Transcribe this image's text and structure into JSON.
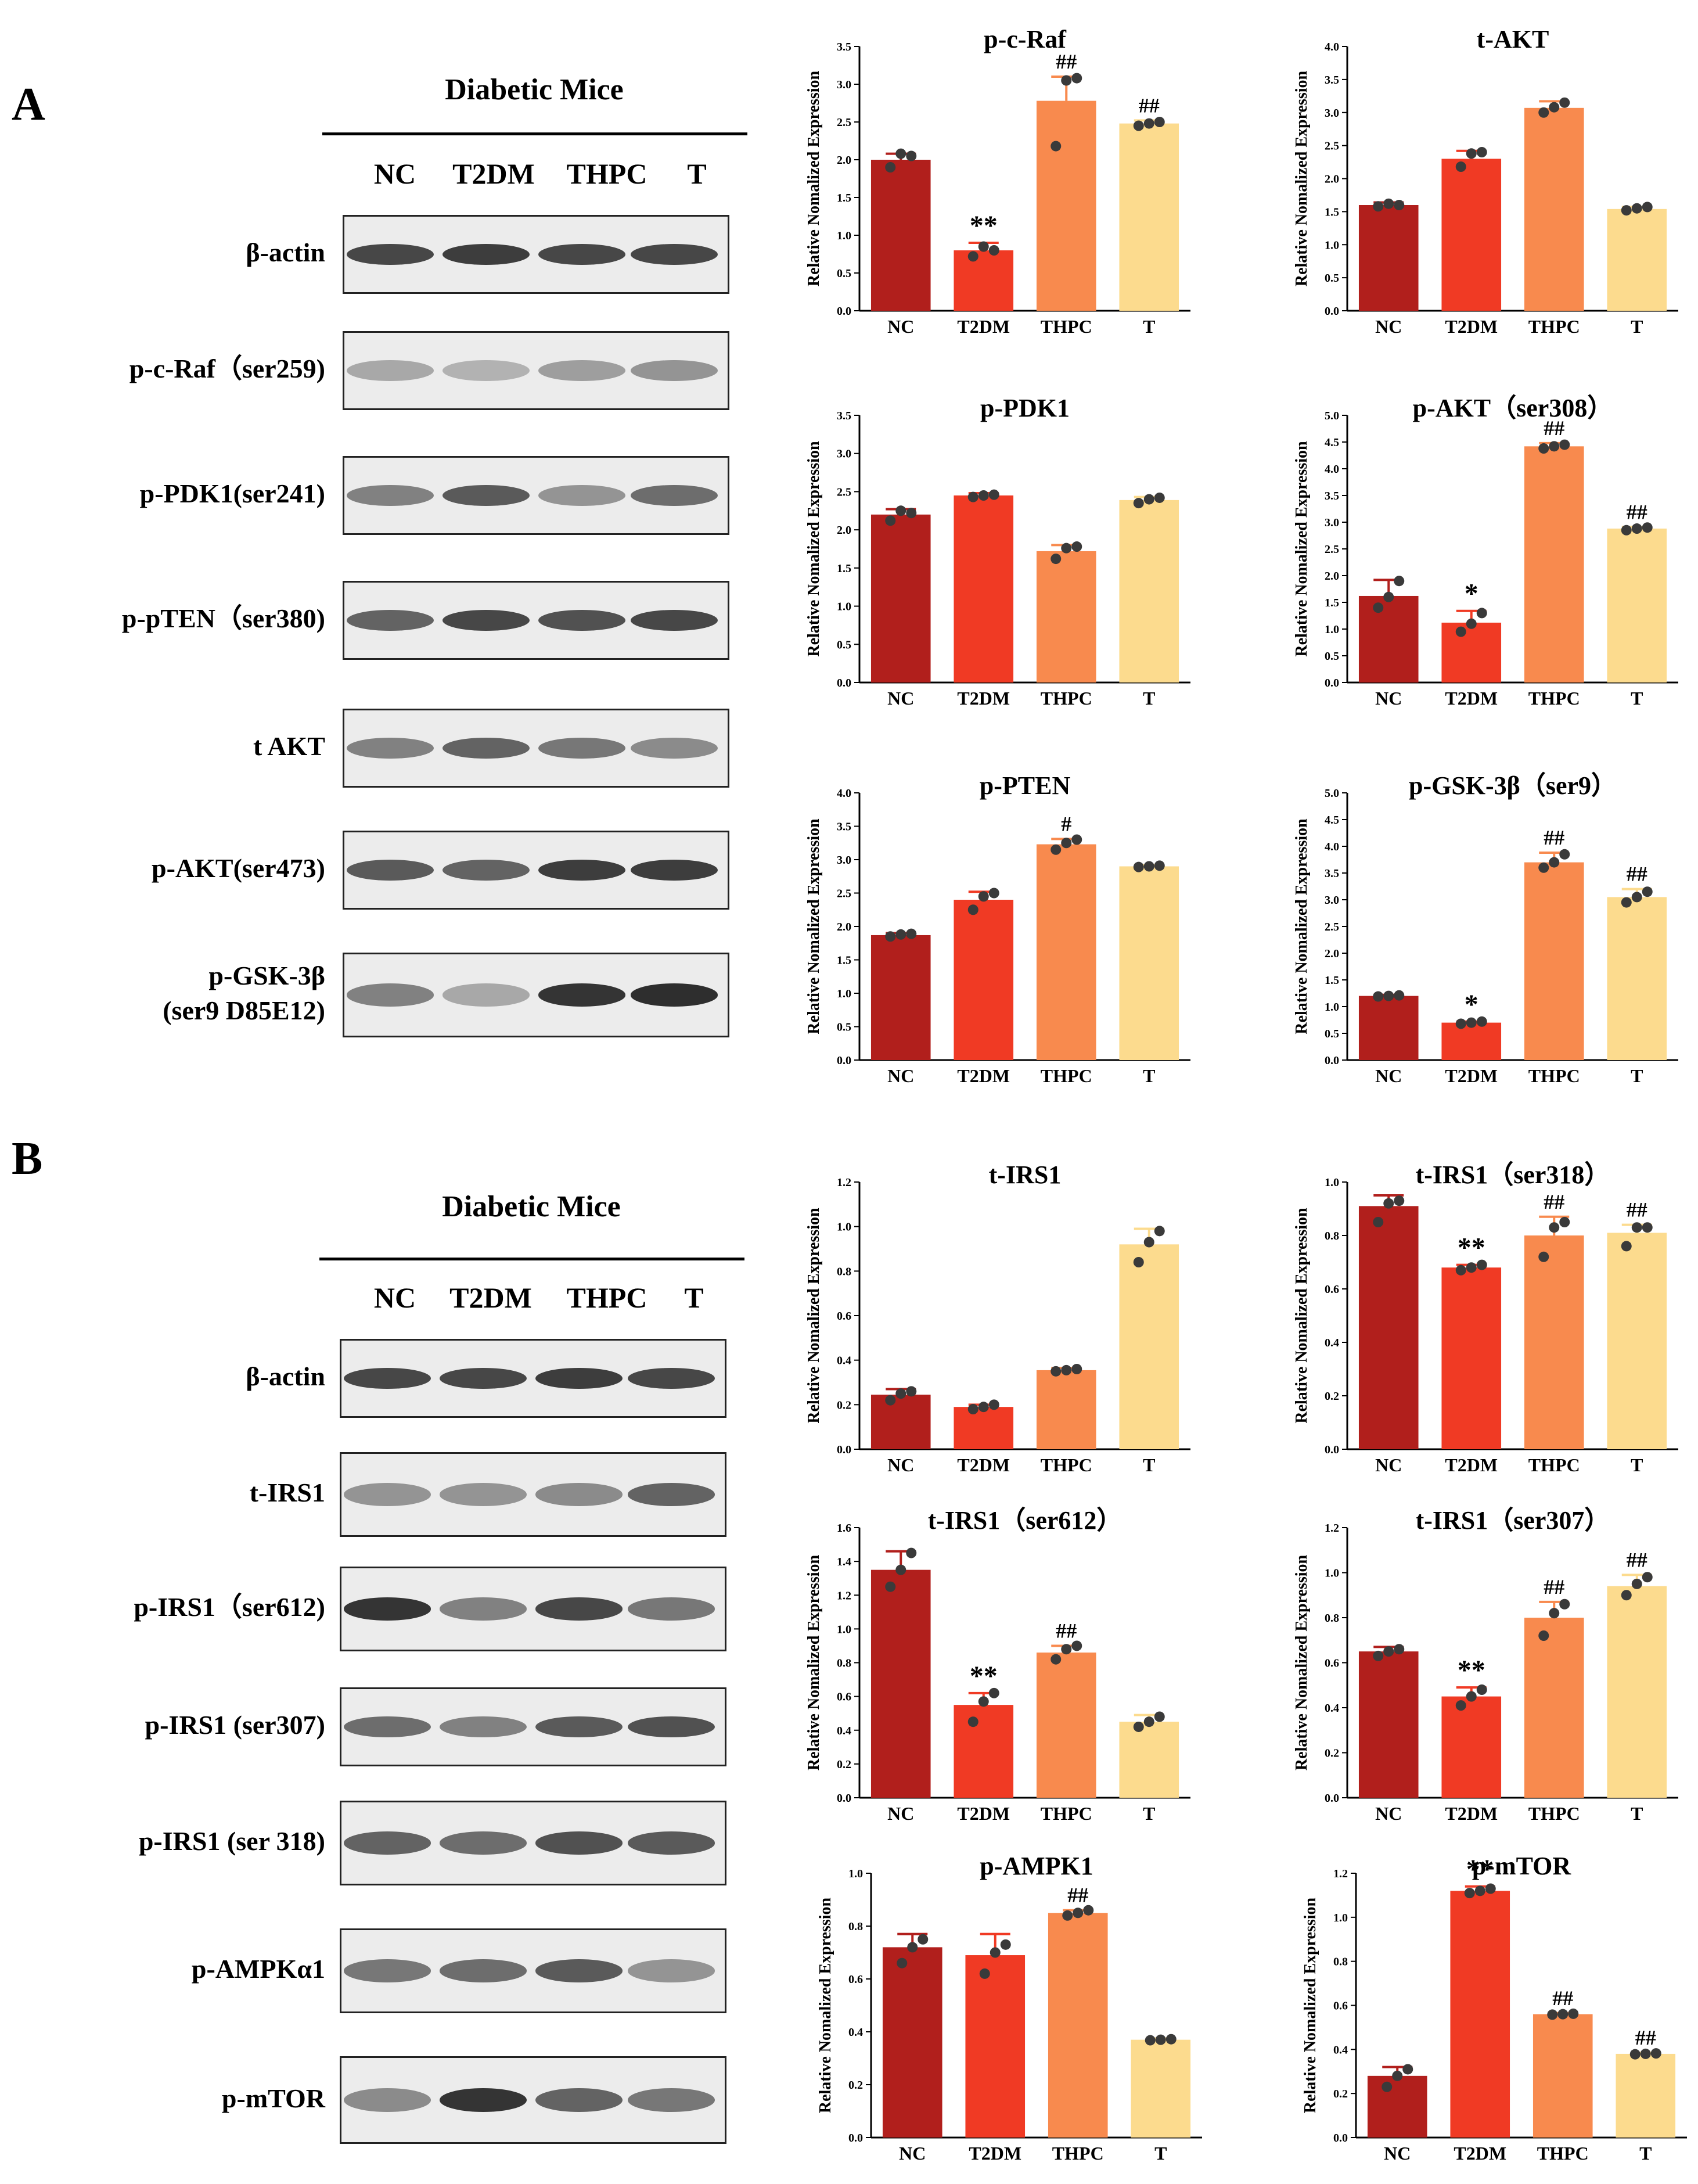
{
  "panels": [
    {
      "letter": "A",
      "blot_title": "Diabetic Mice",
      "lanes": [
        "NC",
        "T2DM",
        "THPC",
        "T"
      ],
      "blots": [
        {
          "label": "β-actin",
          "intensity": [
            0.85,
            0.9,
            0.85,
            0.85
          ]
        },
        {
          "label": "p-c-Raf（ser259)",
          "intensity": [
            0.35,
            0.3,
            0.4,
            0.45
          ]
        },
        {
          "label": "p-PDK1(ser241)",
          "intensity": [
            0.55,
            0.75,
            0.45,
            0.65
          ]
        },
        {
          "label": "p-pTEN（ser380)",
          "intensity": [
            0.7,
            0.85,
            0.8,
            0.85
          ]
        },
        {
          "label": "t AKT",
          "intensity": [
            0.55,
            0.7,
            0.6,
            0.5
          ]
        },
        {
          "label": "p-AKT(ser473)",
          "intensity": [
            0.75,
            0.7,
            0.9,
            0.9
          ]
        },
        {
          "label": "p-GSK-3β\n(ser9 D85E12)",
          "intensity": [
            0.55,
            0.35,
            0.95,
            0.98
          ]
        }
      ]
    },
    {
      "letter": "B",
      "blot_title": "Diabetic Mice",
      "lanes": [
        "NC",
        "T2DM",
        "THPC",
        "T"
      ],
      "blots": [
        {
          "label": "β-actin",
          "intensity": [
            0.85,
            0.85,
            0.9,
            0.85
          ]
        },
        {
          "label": "t-IRS1",
          "intensity": [
            0.45,
            0.45,
            0.5,
            0.7
          ]
        },
        {
          "label": "p-IRS1（ser612)",
          "intensity": [
            0.95,
            0.55,
            0.85,
            0.6
          ]
        },
        {
          "label": "p-IRS1 (ser307)",
          "intensity": [
            0.65,
            0.55,
            0.75,
            0.8
          ]
        },
        {
          "label": "p-IRS1 (ser 318)",
          "intensity": [
            0.7,
            0.65,
            0.8,
            0.75
          ]
        },
        {
          "label": "p-AMPKα1",
          "intensity": [
            0.6,
            0.65,
            0.75,
            0.45
          ]
        },
        {
          "label": "p-mTOR",
          "intensity": [
            0.5,
            0.95,
            0.7,
            0.6
          ]
        }
      ]
    }
  ],
  "colors": {
    "NC": "#b11f1c",
    "T2DM": "#f03a24",
    "THPC": "#f88a4e",
    "T": "#fcdb8e",
    "dots": "#3a3a3a"
  },
  "chart_data": [
    {
      "type": "bar",
      "title": "p-c-Raf",
      "ylabel": "Relative Nomalized Expression",
      "categories": [
        "NC",
        "T2DM",
        "THPC",
        "T"
      ],
      "values": [
        2.0,
        0.8,
        2.78,
        2.48
      ],
      "errors": [
        0.08,
        0.1,
        0.32,
        0.04
      ],
      "points": [
        [
          1.9,
          2.08,
          2.05
        ],
        [
          0.72,
          0.85,
          0.8
        ],
        [
          2.18,
          3.05,
          3.08
        ],
        [
          2.45,
          2.48,
          2.5
        ]
      ],
      "annotations": [
        "",
        "**",
        "##",
        "##"
      ],
      "ylim": [
        0,
        3.5
      ],
      "yticks": [
        "0.0",
        "0.5",
        "1.0",
        "1.5",
        "2.0",
        "2.5",
        "3.0",
        "3.5"
      ]
    },
    {
      "type": "bar",
      "title": "t-AKT",
      "ylabel": "Relative Nomalized Expression",
      "categories": [
        "NC",
        "T2DM",
        "THPC",
        "T"
      ],
      "values": [
        1.6,
        2.3,
        3.07,
        1.54
      ],
      "errors": [
        0.04,
        0.12,
        0.1,
        0.03
      ],
      "points": [
        [
          1.58,
          1.62,
          1.6
        ],
        [
          2.18,
          2.38,
          2.4
        ],
        [
          3.0,
          3.08,
          3.15
        ],
        [
          1.52,
          1.55,
          1.57
        ]
      ],
      "annotations": [
        "",
        "",
        "",
        ""
      ],
      "ylim": [
        0,
        4.0
      ],
      "yticks": [
        "0.0",
        "0.5",
        "1.0",
        "1.5",
        "2.0",
        "2.5",
        "3.0",
        "3.5",
        "4.0"
      ]
    },
    {
      "type": "bar",
      "title": "p-PDK1",
      "ylabel": "Relative Nomalized Expression",
      "categories": [
        "NC",
        "T2DM",
        "THPC",
        "T"
      ],
      "values": [
        2.2,
        2.45,
        1.72,
        2.39
      ],
      "errors": [
        0.07,
        0.03,
        0.08,
        0.04
      ],
      "points": [
        [
          2.12,
          2.25,
          2.22
        ],
        [
          2.43,
          2.45,
          2.46
        ],
        [
          1.62,
          1.76,
          1.78
        ],
        [
          2.35,
          2.4,
          2.42
        ]
      ],
      "annotations": [
        "",
        "",
        "",
        ""
      ],
      "ylim": [
        0,
        3.5
      ],
      "yticks": [
        "0.0",
        "0.5",
        "1.0",
        "1.5",
        "2.0",
        "2.5",
        "3.0",
        "3.5"
      ]
    },
    {
      "type": "bar",
      "title": "p-AKT（ser308）",
      "ylabel": "Relative Nomalized Expression",
      "categories": [
        "NC",
        "T2DM",
        "THPC",
        "T"
      ],
      "values": [
        1.62,
        1.12,
        4.42,
        2.88
      ],
      "errors": [
        0.3,
        0.22,
        0.06,
        0.03
      ],
      "points": [
        [
          1.4,
          1.6,
          1.9
        ],
        [
          0.95,
          1.1,
          1.3
        ],
        [
          4.38,
          4.42,
          4.45
        ],
        [
          2.85,
          2.88,
          2.9
        ]
      ],
      "annotations": [
        "",
        "*",
        "##",
        "##"
      ],
      "ylim": [
        0,
        5.0
      ],
      "yticks": [
        "0.0",
        "0.5",
        "1.0",
        "1.5",
        "2.0",
        "2.5",
        "3.0",
        "3.5",
        "4.0",
        "4.5",
        "5.0"
      ]
    },
    {
      "type": "bar",
      "title": "p-PTEN",
      "ylabel": "Relative Nomalized Expression",
      "categories": [
        "NC",
        "T2DM",
        "THPC",
        "T"
      ],
      "values": [
        1.87,
        2.4,
        3.23,
        2.9
      ],
      "errors": [
        0.03,
        0.12,
        0.08,
        0.02
      ],
      "points": [
        [
          1.85,
          1.88,
          1.89
        ],
        [
          2.25,
          2.45,
          2.5
        ],
        [
          3.15,
          3.25,
          3.3
        ],
        [
          2.89,
          2.9,
          2.91
        ]
      ],
      "annotations": [
        "",
        "",
        "#",
        ""
      ],
      "ylim": [
        0,
        4.0
      ],
      "yticks": [
        "0.0",
        "0.5",
        "1.0",
        "1.5",
        "2.0",
        "2.5",
        "3.0",
        "3.5",
        "4.0"
      ]
    },
    {
      "type": "bar",
      "title": "p-GSK-3β（ser9）",
      "ylabel": "Relative Nomalized Expression",
      "categories": [
        "NC",
        "T2DM",
        "THPC",
        "T"
      ],
      "values": [
        1.2,
        0.7,
        3.7,
        3.05
      ],
      "errors": [
        0.02,
        0.02,
        0.18,
        0.15
      ],
      "points": [
        [
          1.19,
          1.2,
          1.21
        ],
        [
          0.68,
          0.7,
          0.72
        ],
        [
          3.6,
          3.7,
          3.85
        ],
        [
          2.95,
          3.05,
          3.15
        ]
      ],
      "annotations": [
        "",
        "*",
        "##",
        "##"
      ],
      "ylim": [
        0,
        5.0
      ],
      "yticks": [
        "0.0",
        "0.5",
        "1.0",
        "1.5",
        "2.0",
        "2.5",
        "3.0",
        "3.5",
        "4.0",
        "4.5",
        "5.0"
      ]
    },
    {
      "type": "bar",
      "title": "t-IRS1",
      "ylabel": "Relative Nomalized Expression",
      "categories": [
        "NC",
        "T2DM",
        "THPC",
        "T"
      ],
      "values": [
        0.245,
        0.19,
        0.355,
        0.92
      ],
      "errors": [
        0.025,
        0.01,
        0.01,
        0.07
      ],
      "points": [
        [
          0.22,
          0.25,
          0.26
        ],
        [
          0.18,
          0.19,
          0.2
        ],
        [
          0.35,
          0.355,
          0.36
        ],
        [
          0.84,
          0.93,
          0.98
        ]
      ],
      "annotations": [
        "",
        "",
        "",
        ""
      ],
      "ylim": [
        0,
        1.2
      ],
      "yticks": [
        "0.0",
        "0.2",
        "0.4",
        "0.6",
        "0.8",
        "1.0",
        "1.2"
      ]
    },
    {
      "type": "bar",
      "title": "t-IRS1（ser318）",
      "ylabel": "Relative Nomalized Expression",
      "categories": [
        "NC",
        "T2DM",
        "THPC",
        "T"
      ],
      "values": [
        0.91,
        0.68,
        0.8,
        0.81
      ],
      "errors": [
        0.04,
        0.01,
        0.07,
        0.03
      ],
      "points": [
        [
          0.85,
          0.92,
          0.93
        ],
        [
          0.67,
          0.68,
          0.69
        ],
        [
          0.72,
          0.83,
          0.85
        ],
        [
          0.76,
          0.83,
          0.83
        ]
      ],
      "annotations": [
        "",
        "**",
        "##",
        "##"
      ],
      "ylim": [
        0,
        1.0
      ],
      "yticks": [
        "0.0",
        "0.2",
        "0.4",
        "0.6",
        "0.8",
        "1.0"
      ]
    },
    {
      "type": "bar",
      "title": "t-IRS1（ser612）",
      "ylabel": "Relative Nomalized Expression",
      "categories": [
        "NC",
        "T2DM",
        "THPC",
        "T"
      ],
      "values": [
        1.35,
        0.55,
        0.86,
        0.45
      ],
      "errors": [
        0.11,
        0.07,
        0.04,
        0.04
      ],
      "points": [
        [
          1.25,
          1.35,
          1.45
        ],
        [
          0.45,
          0.57,
          0.62
        ],
        [
          0.82,
          0.88,
          0.9
        ],
        [
          0.42,
          0.45,
          0.48
        ]
      ],
      "annotations": [
        "",
        "**",
        "##",
        ""
      ],
      "ylim": [
        0,
        1.6
      ],
      "yticks": [
        "0.0",
        "0.2",
        "0.4",
        "0.6",
        "0.8",
        "1.0",
        "1.2",
        "1.4",
        "1.6"
      ]
    },
    {
      "type": "bar",
      "title": "t-IRS1（ser307）",
      "ylabel": "Relative Nomalized Expression",
      "categories": [
        "NC",
        "T2DM",
        "THPC",
        "T"
      ],
      "values": [
        0.65,
        0.45,
        0.8,
        0.94
      ],
      "errors": [
        0.02,
        0.04,
        0.07,
        0.05
      ],
      "points": [
        [
          0.63,
          0.65,
          0.66
        ],
        [
          0.41,
          0.45,
          0.48
        ],
        [
          0.72,
          0.82,
          0.86
        ],
        [
          0.9,
          0.95,
          0.98
        ]
      ],
      "annotations": [
        "",
        "**",
        "##",
        "##"
      ],
      "ylim": [
        0,
        1.2
      ],
      "yticks": [
        "0.0",
        "0.2",
        "0.4",
        "0.6",
        "0.8",
        "1.0",
        "1.2"
      ]
    },
    {
      "type": "bar",
      "title": "p-AMPK1",
      "ylabel": "Relative Nomalized Expression",
      "categories": [
        "NC",
        "T2DM",
        "THPC",
        "T"
      ],
      "values": [
        0.72,
        0.69,
        0.85,
        0.37
      ],
      "errors": [
        0.05,
        0.08,
        0.01,
        0.005
      ],
      "points": [
        [
          0.66,
          0.72,
          0.75
        ],
        [
          0.62,
          0.7,
          0.73
        ],
        [
          0.84,
          0.85,
          0.86
        ],
        [
          0.368,
          0.37,
          0.372
        ]
      ],
      "annotations": [
        "",
        "",
        "##",
        ""
      ],
      "ylim": [
        0,
        1.0
      ],
      "yticks": [
        "0.0",
        "0.2",
        "0.4",
        "0.6",
        "0.8",
        "1.0"
      ]
    },
    {
      "type": "bar",
      "title": "p-mTOR",
      "ylabel": "Relative Nomalized Expression",
      "categories": [
        "NC",
        "T2DM",
        "THPC",
        "T"
      ],
      "values": [
        0.28,
        1.12,
        0.56,
        0.38
      ],
      "errors": [
        0.04,
        0.02,
        0.005,
        0.005
      ],
      "points": [
        [
          0.23,
          0.28,
          0.31
        ],
        [
          1.11,
          1.12,
          1.13
        ],
        [
          0.558,
          0.56,
          0.562
        ],
        [
          0.378,
          0.38,
          0.382
        ]
      ],
      "annotations": [
        "",
        "**",
        "##",
        "##"
      ],
      "ylim": [
        0,
        1.2
      ],
      "yticks": [
        "0.0",
        "0.2",
        "0.4",
        "0.6",
        "0.8",
        "1.0",
        "1.2"
      ]
    }
  ]
}
